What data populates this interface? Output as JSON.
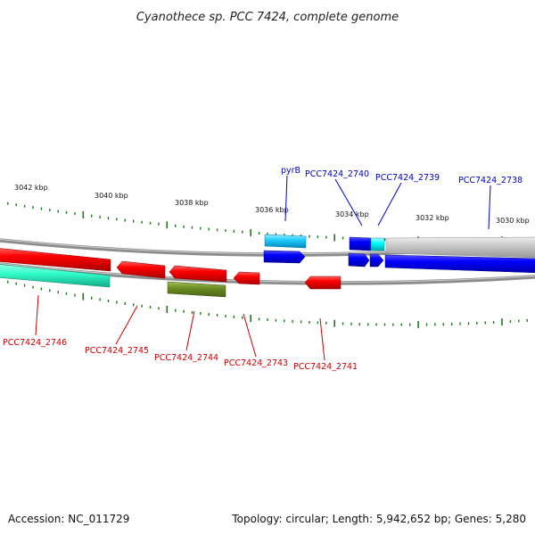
{
  "title": "Cyanothece sp. PCC 7424, complete genome",
  "footer": {
    "accession": "Accession: NC_011729",
    "topology": "Topology: circular; Length: 5,942,652 bp; Genes: 5,280"
  },
  "ticks": [
    "3042 kbp",
    "3040 kbp",
    "3038 kbp",
    "3036 kbp",
    "3034 kbp",
    "3032 kbp",
    "3030 kbp"
  ],
  "genes_top": [
    {
      "name": "pyrB",
      "color": "#0000cc"
    },
    {
      "name": "PCC7424_2740",
      "color": "#0000cc"
    },
    {
      "name": "PCC7424_2739",
      "color": "#0000cc"
    },
    {
      "name": "PCC7424_2738",
      "color": "#0000cc"
    }
  ],
  "genes_bottom": [
    {
      "name": "PCC7424_2746",
      "color": "#cc0000"
    },
    {
      "name": "PCC7424_2745",
      "color": "#cc0000"
    },
    {
      "name": "PCC7424_2744",
      "color": "#cc0000"
    },
    {
      "name": "PCC7424_2743",
      "color": "#cc0000"
    },
    {
      "name": "PCC7424_2741",
      "color": "#cc0000"
    }
  ],
  "colors": {
    "red": "#ff0000",
    "blue": "#0000ff",
    "cyan": "#00ccff",
    "teal": "#33ffcc",
    "olive": "#6b8e23",
    "gray": "#c0c0c0",
    "tick": "#1a7a1a"
  }
}
